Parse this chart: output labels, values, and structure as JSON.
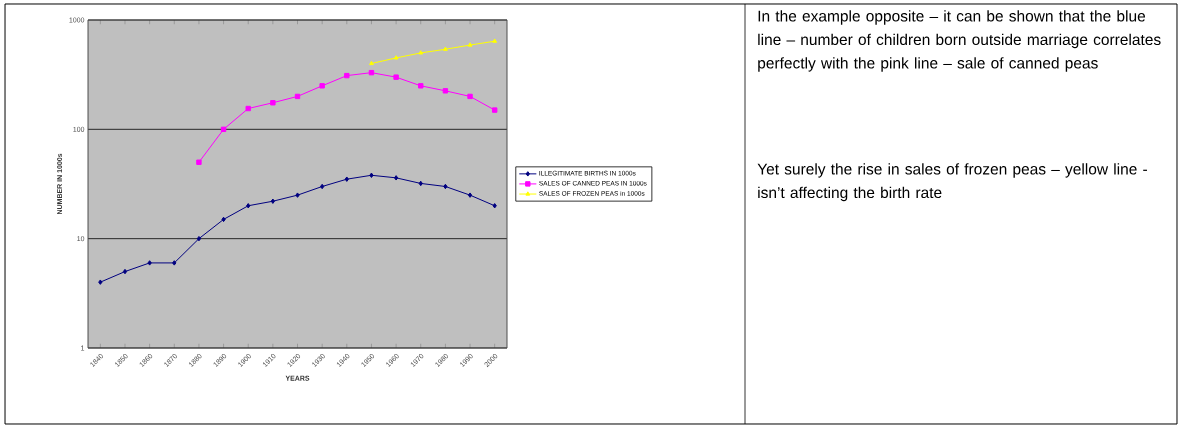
{
  "chart_data": {
    "type": "line",
    "xlabel": "YEARS",
    "ylabel": "NUMBER IN 1000s",
    "categories": [
      "1840",
      "1850",
      "1860",
      "1870",
      "1880",
      "1890",
      "1900",
      "1910",
      "1920",
      "1930",
      "1940",
      "1950",
      "1960",
      "1970",
      "1980",
      "1990",
      "2000"
    ],
    "series": [
      {
        "name": "ILLEGITIMATE BIRTHS IN 1000s",
        "color": "#000080",
        "marker": "diamond",
        "values": [
          4,
          5,
          6,
          6,
          10,
          15,
          20,
          22,
          25,
          30,
          35,
          38,
          36,
          32,
          30,
          25,
          20
        ]
      },
      {
        "name": "SALES OF CANNED PEAS IN 1000s",
        "color": "#ff00ff",
        "marker": "square",
        "values": [
          null,
          null,
          null,
          null,
          50,
          100,
          155,
          175,
          200,
          250,
          310,
          330,
          300,
          250,
          225,
          200,
          150
        ]
      },
      {
        "name": "SALES OF FROZEN PEAS in 1000s",
        "color": "#ffff00",
        "marker": "triangle",
        "values": [
          null,
          null,
          null,
          null,
          null,
          null,
          null,
          null,
          null,
          null,
          null,
          400,
          450,
          500,
          540,
          590,
          640
        ]
      }
    ],
    "log": "y",
    "ylim": [
      1,
      1000
    ],
    "yticks": [
      1,
      10,
      100,
      1000
    ],
    "grid": "y",
    "legend": "right",
    "annotations": [
      "In the example opposite – it can be shown that the blue line – number of children born outside marriage correlates perfectly with the pink line – sale of canned peas",
      "Yet surely the rise in sales of frozen peas – yellow line - isn’t affecting the birth rate"
    ]
  }
}
